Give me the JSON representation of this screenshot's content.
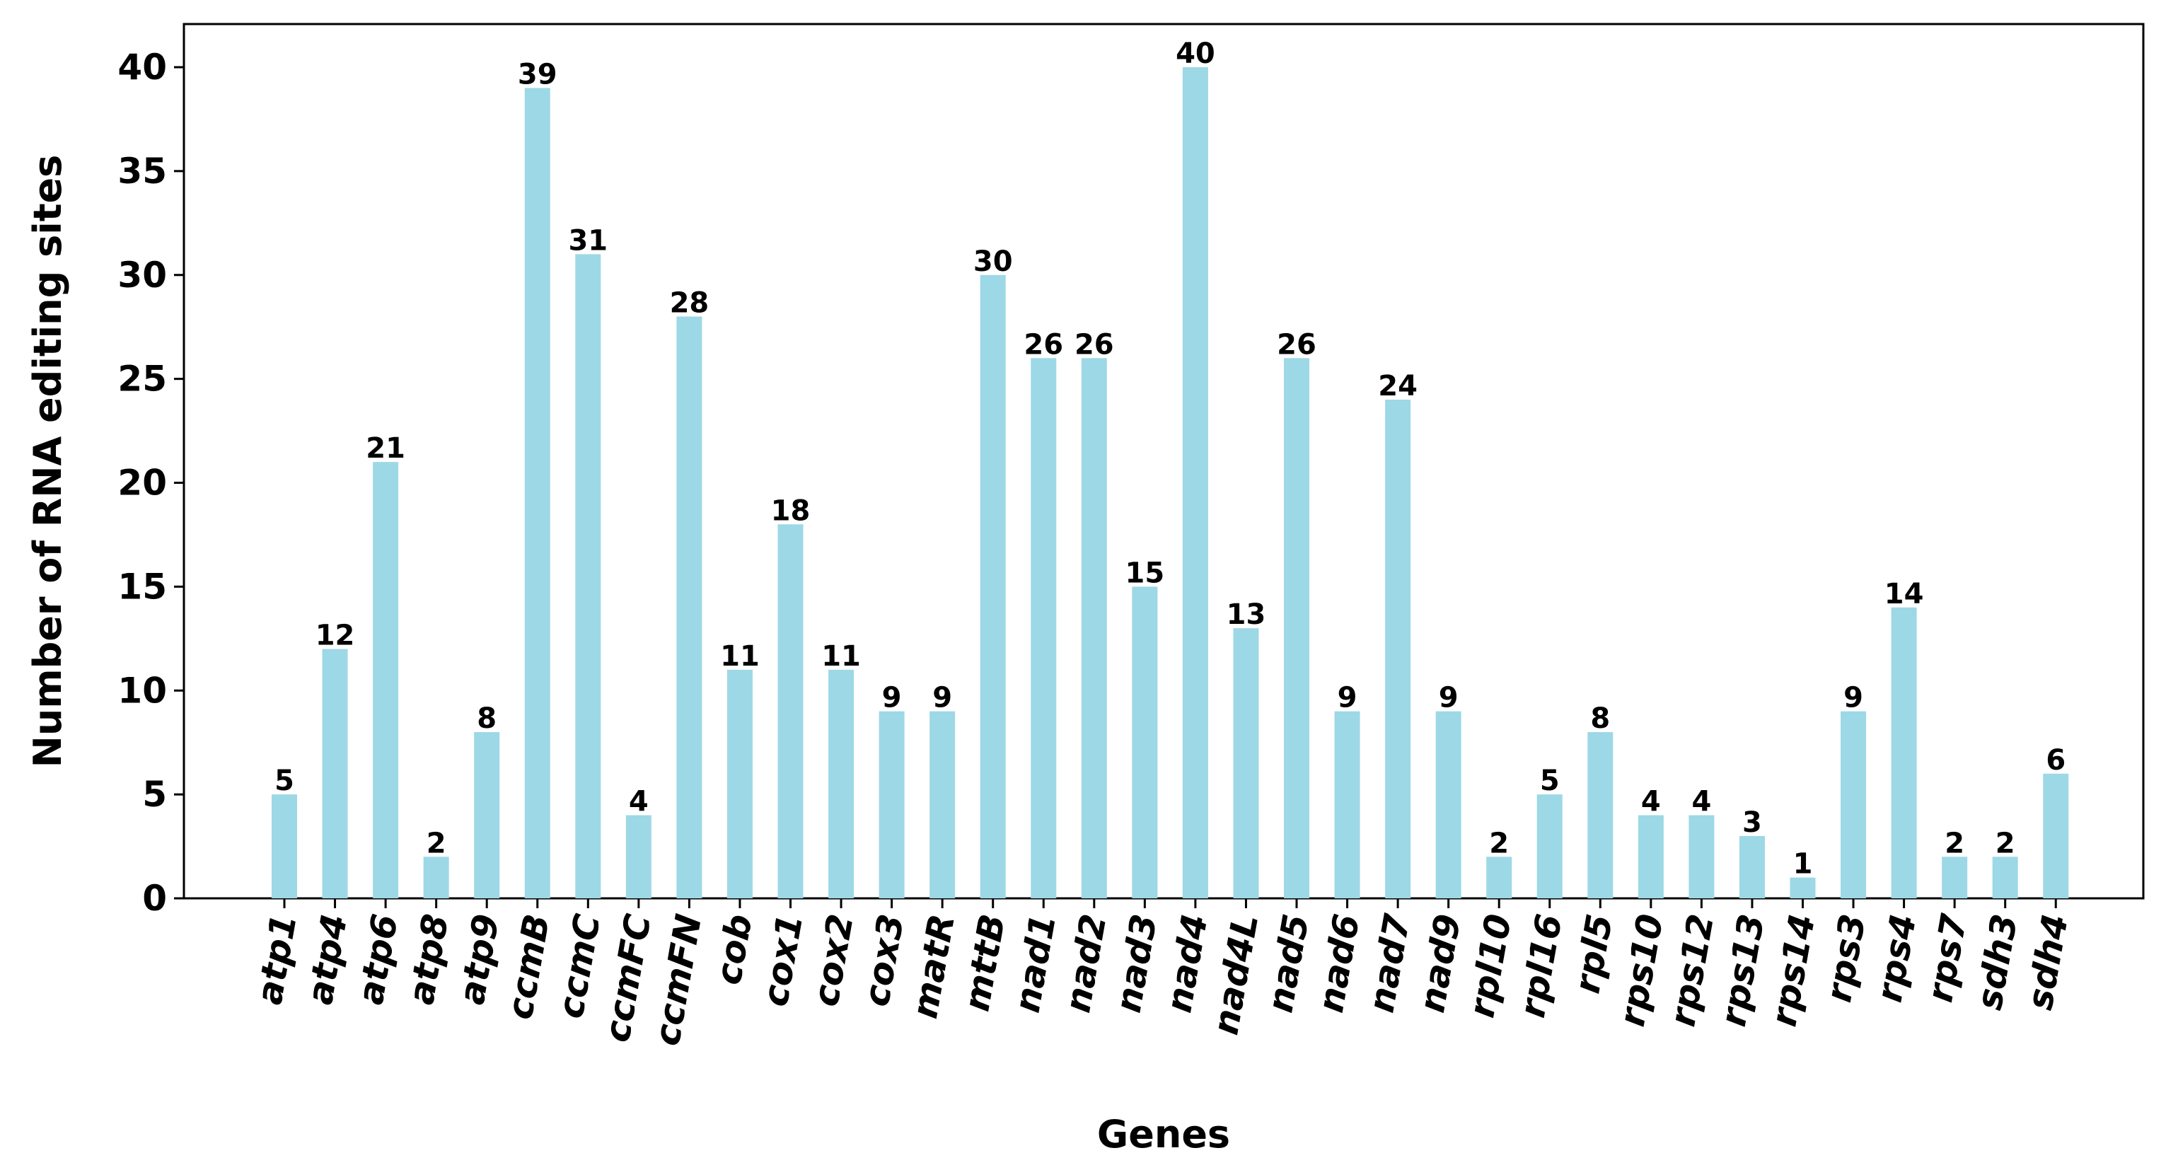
{
  "chart_data": {
    "type": "bar",
    "title": "",
    "xlabel": "Genes",
    "ylabel": "Number of RNA editing sites",
    "ylim": [
      0,
      42
    ],
    "yticks": [
      0,
      5,
      10,
      15,
      20,
      25,
      30,
      35,
      40
    ],
    "categories": [
      "atp1",
      "atp4",
      "atp6",
      "atp8",
      "atp9",
      "ccmB",
      "ccmC",
      "ccmFC",
      "ccmFN",
      "cob",
      "cox1",
      "cox2",
      "cox3",
      "matR",
      "mttB",
      "nad1",
      "nad2",
      "nad3",
      "nad4",
      "nad4L",
      "nad5",
      "nad6",
      "nad7",
      "nad9",
      "rpl10",
      "rpl16",
      "rpl5",
      "rps10",
      "rps12",
      "rps13",
      "rps14",
      "rps3",
      "rps4",
      "rps7",
      "sdh3",
      "sdh4"
    ],
    "values": [
      5,
      12,
      21,
      2,
      8,
      39,
      31,
      4,
      28,
      11,
      18,
      11,
      9,
      9,
      30,
      26,
      26,
      15,
      40,
      13,
      26,
      9,
      24,
      9,
      2,
      5,
      8,
      4,
      4,
      3,
      1,
      9,
      14,
      2,
      2,
      6
    ],
    "bar_color": "#9dd8e6",
    "grid": false,
    "legend": "none"
  }
}
